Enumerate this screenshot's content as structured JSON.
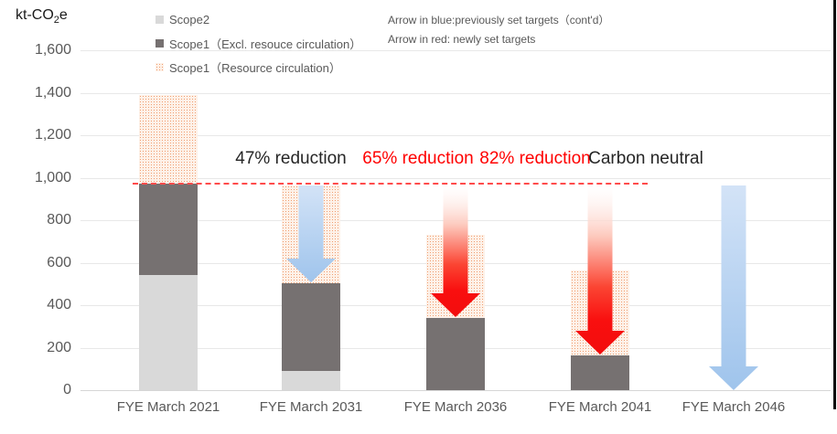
{
  "title": {
    "main": "kt-CO",
    "sub": "2",
    "tail": "e"
  },
  "legend": {
    "items": [
      {
        "label": "Scope2",
        "swatch": "scope2"
      },
      {
        "label": "Scope1（Excl. resouce circulation）",
        "swatch": "scope1-excl"
      },
      {
        "label": "Scope1（Resource circulation）",
        "swatch": "scope1-res"
      }
    ]
  },
  "notes": {
    "line1": "Arrow in blue:previously set targets（cont'd）",
    "line2": "Arrow in red: newly set targets"
  },
  "colors": {
    "scope2": "#d9d9d9",
    "scope1_excl": "#767171",
    "scope1_res_dot": "#f19e70",
    "scope1_res_bg": "#fdf1e8",
    "baseline_red": "#ff4b4b",
    "axis_text": "#595959",
    "red_text": "#ff0000",
    "dark_text": "#262626",
    "blue_arrow_top": "#d3e3f7",
    "blue_arrow_bottom": "#9fc4ec",
    "red_arrow": "#f90f0f"
  },
  "chart_data": {
    "type": "bar",
    "stacked": true,
    "unit": "kt-CO2e",
    "title": "kt-CO2e",
    "categories": [
      "FYE March 2021",
      "FYE March 2031",
      "FYE March 2036",
      "FYE March 2041",
      "FYE March 2046"
    ],
    "series": [
      {
        "name": "Scope2",
        "values": [
          540,
          90,
          0,
          0,
          0
        ]
      },
      {
        "name": "Scope1（Excl. resouce circulation）",
        "values": [
          430,
          415,
          340,
          165,
          0
        ]
      },
      {
        "name": "Scope1（Resource circulation）",
        "values": [
          420,
          460,
          390,
          400,
          0
        ]
      }
    ],
    "totals": [
      1390,
      965,
      730,
      565,
      0
    ],
    "ylim": [
      0,
      1600
    ],
    "ytick_step": 200,
    "ytick_labels": [
      "0",
      "200",
      "400",
      "600",
      "800",
      "1,000",
      "1,200",
      "1,400",
      "1,600"
    ],
    "grid": true,
    "legend_position": "top",
    "baseline_value": 970,
    "annotations": [
      {
        "text": "47% reduction",
        "color": "#262626"
      },
      {
        "text": "65% reduction",
        "color": "#ff0000"
      },
      {
        "text": "82% reduction",
        "color": "#ff0000"
      },
      {
        "text": "Carbon neutral",
        "color": "#262626"
      }
    ],
    "arrows": [
      {
        "category_index": 1,
        "kind": "blue",
        "from": 970,
        "to": 505
      },
      {
        "category_index": 2,
        "kind": "red",
        "from": 970,
        "to": 340
      },
      {
        "category_index": 3,
        "kind": "red",
        "from": 970,
        "to": 165
      },
      {
        "category_index": 4,
        "kind": "blue",
        "from": 970,
        "to": 0
      }
    ]
  }
}
